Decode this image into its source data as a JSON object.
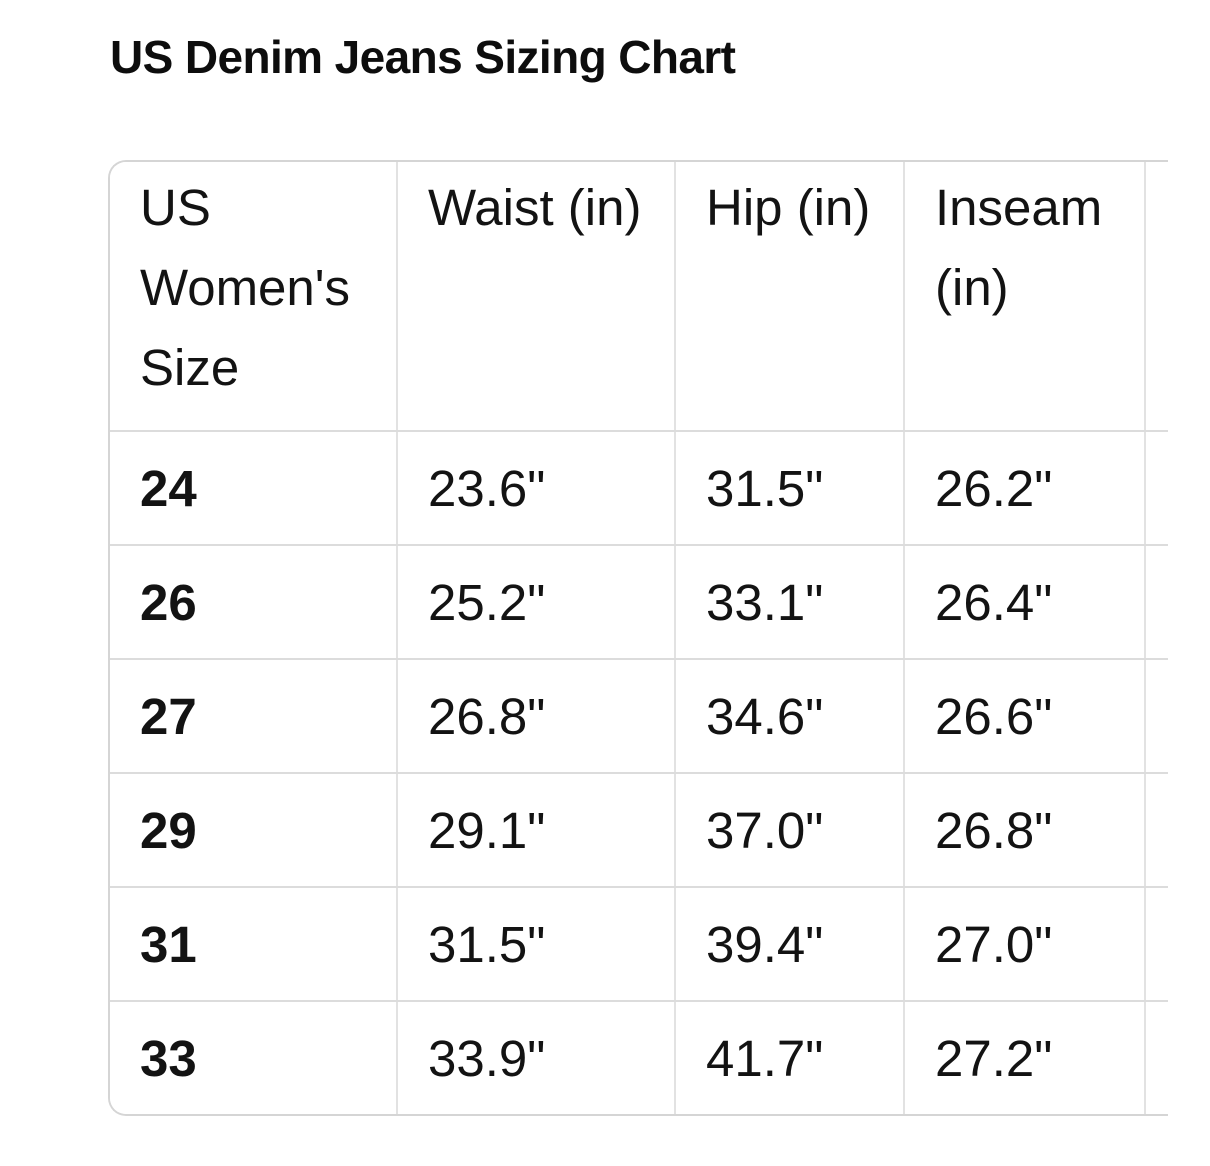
{
  "title": "US Denim Jeans Sizing Chart",
  "chart_data": {
    "type": "table",
    "title": "US Denim Jeans Sizing Chart",
    "columns": [
      "US Women's Size",
      "Waist (in)",
      "Hip (in)",
      "Inseam (in)"
    ],
    "rows": [
      [
        "24",
        "23.6\"",
        "31.5\"",
        "26.2\""
      ],
      [
        "26",
        "25.2\"",
        "33.1\"",
        "26.4\""
      ],
      [
        "27",
        "26.8\"",
        "34.6\"",
        "26.6\""
      ],
      [
        "29",
        "29.1\"",
        "37.0\"",
        "26.8\""
      ],
      [
        "31",
        "31.5\"",
        "39.4\"",
        "27.0\""
      ],
      [
        "33",
        "33.9\"",
        "41.7\"",
        "27.2\""
      ]
    ],
    "layout": {
      "grid": true,
      "clipped_empty_trailing_column": true,
      "first_column_bold": true
    }
  },
  "colors": {
    "background": "#ffffff",
    "text": "#111111",
    "title_text": "#0d0d0d",
    "border": "#d9d9d9"
  }
}
